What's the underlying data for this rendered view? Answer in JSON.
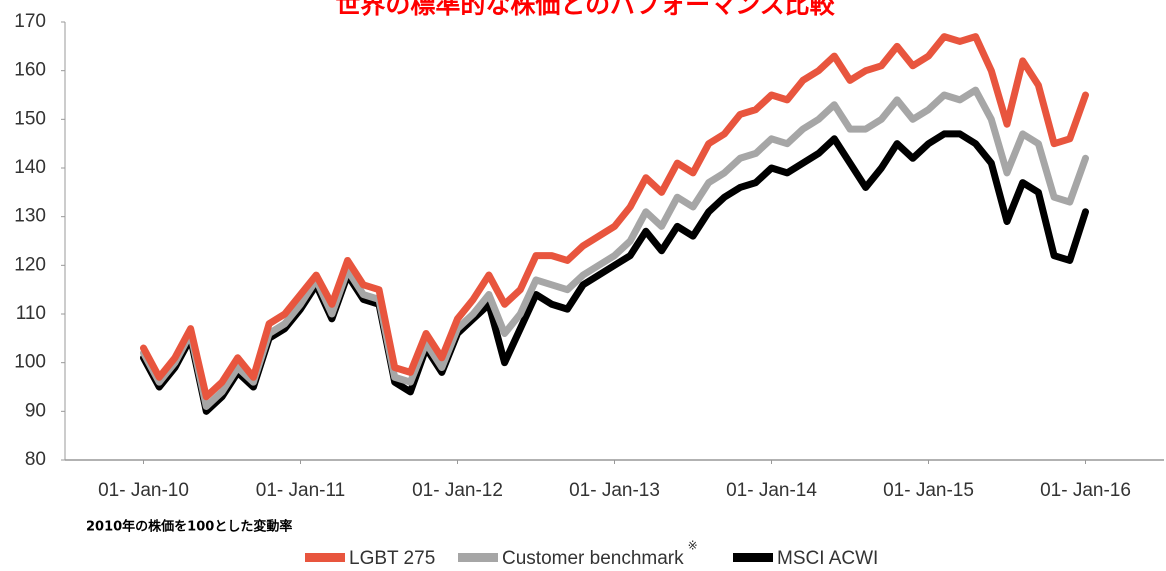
{
  "chart_data": {
    "type": "line",
    "title": "世界の標準的な株価とのパフォーマンス比較",
    "annotation": "2010年の株価を100とした変動率",
    "legend_note": "※",
    "x": [
      2010.0,
      2010.1,
      2010.2,
      2010.3,
      2010.4,
      2010.5,
      2010.6,
      2010.7,
      2010.8,
      2010.9,
      2011.0,
      2011.1,
      2011.2,
      2011.3,
      2011.4,
      2011.5,
      2011.6,
      2011.7,
      2011.8,
      2011.9,
      2012.0,
      2012.1,
      2012.2,
      2012.3,
      2012.4,
      2012.5,
      2012.6,
      2012.7,
      2012.8,
      2012.9,
      2013.0,
      2013.1,
      2013.2,
      2013.3,
      2013.4,
      2013.5,
      2013.6,
      2013.7,
      2013.8,
      2013.9,
      2014.0,
      2014.1,
      2014.2,
      2014.3,
      2014.4,
      2014.5,
      2014.6,
      2014.7,
      2014.8,
      2014.9,
      2015.0,
      2015.1,
      2015.2,
      2015.3,
      2015.4,
      2015.5,
      2015.6,
      2015.7,
      2015.8,
      2015.9,
      2016.0
    ],
    "series": [
      {
        "name": "LGBT 275",
        "color": "#e8553e",
        "values": [
          103,
          97,
          101,
          107,
          93,
          96,
          101,
          97,
          108,
          110,
          114,
          118,
          112,
          121,
          116,
          115,
          99,
          98,
          106,
          101,
          109,
          113,
          118,
          112,
          115,
          122,
          122,
          121,
          124,
          126,
          128,
          132,
          138,
          135,
          141,
          139,
          145,
          147,
          151,
          152,
          155,
          154,
          158,
          160,
          163,
          158,
          160,
          161,
          165,
          161,
          163,
          167,
          166,
          167,
          160,
          149,
          162,
          157,
          145,
          146,
          155
        ]
      },
      {
        "name": "Customer benchmark",
        "color": "#a6a6a6",
        "values": [
          102,
          96,
          100,
          106,
          91,
          94,
          99,
          96,
          106,
          108,
          112,
          117,
          110,
          119,
          114,
          113,
          97,
          96,
          104,
          99,
          107,
          110,
          114,
          106,
          110,
          117,
          116,
          115,
          118,
          120,
          122,
          125,
          131,
          128,
          134,
          132,
          137,
          139,
          142,
          143,
          146,
          145,
          148,
          150,
          153,
          148,
          148,
          150,
          154,
          150,
          152,
          155,
          154,
          156,
          150,
          139,
          147,
          145,
          134,
          133,
          142
        ]
      },
      {
        "name": "MSCI ACWI",
        "color": "#000000",
        "values": [
          101,
          95,
          99,
          105,
          90,
          93,
          98,
          95,
          105,
          107,
          111,
          116,
          109,
          118,
          113,
          112,
          96,
          94,
          103,
          98,
          106,
          109,
          112,
          100,
          107,
          114,
          112,
          111,
          116,
          118,
          120,
          122,
          127,
          123,
          128,
          126,
          131,
          134,
          136,
          137,
          140,
          139,
          141,
          143,
          146,
          141,
          136,
          140,
          145,
          142,
          145,
          147,
          147,
          145,
          141,
          129,
          137,
          135,
          122,
          121,
          131
        ]
      }
    ],
    "xlim": [
      2009.5,
      2016.5
    ],
    "xticks": [
      {
        "value": 2010,
        "label": "01- Jan-10"
      },
      {
        "value": 2011,
        "label": "01- Jan-11"
      },
      {
        "value": 2012,
        "label": "01- Jan-12"
      },
      {
        "value": 2013,
        "label": "01- Jan-13"
      },
      {
        "value": 2014,
        "label": "01- Jan-14"
      },
      {
        "value": 2015,
        "label": "01- Jan-15"
      },
      {
        "value": 2016,
        "label": "01- Jan-16"
      }
    ],
    "ylim": [
      80,
      170
    ],
    "yticks": [
      80,
      90,
      100,
      110,
      120,
      130,
      140,
      150,
      160,
      170
    ],
    "grid": false
  }
}
